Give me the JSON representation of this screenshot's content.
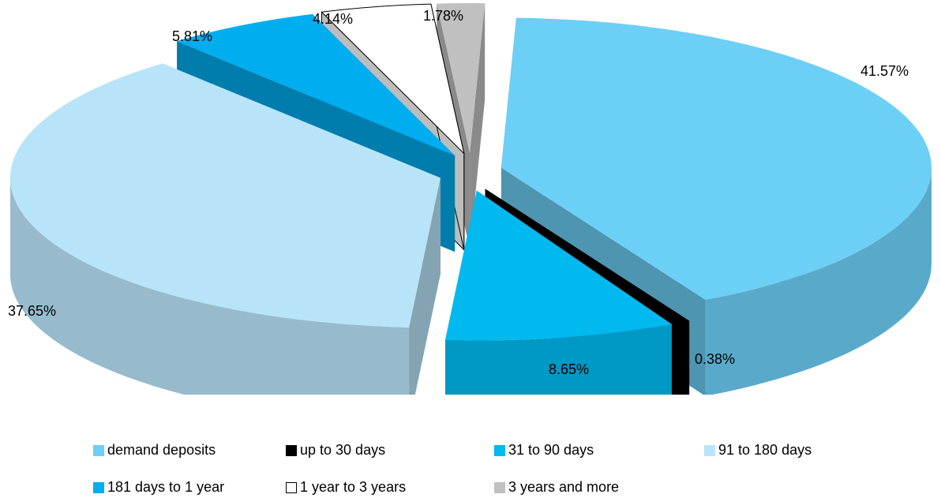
{
  "chart_data": {
    "type": "pie",
    "title": "",
    "categories": [
      "demand deposits",
      "up to 30 days",
      "31 to 90 days",
      "91 to 180 days",
      "181 days to 1 year",
      "1 year to 3 years",
      "3 years and more"
    ],
    "values": [
      41.57,
      0.38,
      8.65,
      37.65,
      5.81,
      4.14,
      1.78
    ],
    "labels": [
      "41.57%",
      "0.38%",
      "8.65%",
      "37.65%",
      "5.81%",
      "4.14%",
      "1.78%"
    ],
    "colors": [
      "#6ccff6",
      "#000000",
      "#00b9ef",
      "#b8e4f9",
      "#00aeef",
      "#ffffff",
      "#c0c0c0"
    ],
    "style": "3d-exploded",
    "legend_position": "bottom"
  }
}
